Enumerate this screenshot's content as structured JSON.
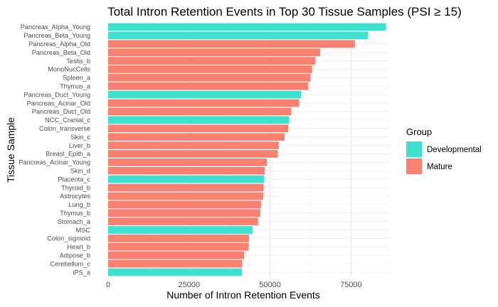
{
  "chart_data": {
    "type": "bar",
    "orientation": "horizontal",
    "title": "Total Intron Retention Events in Top 30 Tissue Samples (PSI ≥ 15)",
    "xlabel": "Number of Intron Retention Events",
    "ylabel": "Tissue Sample",
    "xlim": [
      0,
      87000
    ],
    "xticks": [
      0,
      25000,
      50000,
      75000
    ],
    "xtick_labels": [
      "0",
      "25000",
      "50000",
      "75000"
    ],
    "grid": true,
    "legend": {
      "title": "Group",
      "position": "right",
      "entries": [
        {
          "label": "Developmental",
          "color": "#40E0D0"
        },
        {
          "label": "Mature",
          "color": "#FA8072"
        }
      ]
    },
    "bars": [
      {
        "label": "Pancreas_Alpha_Young",
        "value": 85800,
        "group": "Developmental"
      },
      {
        "label": "Pancreas_Beta_Young",
        "value": 80300,
        "group": "Developmental"
      },
      {
        "label": "Pancreas_Alpha_Old",
        "value": 76200,
        "group": "Mature"
      },
      {
        "label": "Pancreas_Beta_Old",
        "value": 65500,
        "group": "Mature"
      },
      {
        "label": "Testis_b",
        "value": 64000,
        "group": "Mature"
      },
      {
        "label": "MonoNucCells",
        "value": 63000,
        "group": "Mature"
      },
      {
        "label": "Spleen_a",
        "value": 62500,
        "group": "Mature"
      },
      {
        "label": "Thymus_a",
        "value": 61800,
        "group": "Mature"
      },
      {
        "label": "Pancreas_Duct_Young",
        "value": 59600,
        "group": "Developmental"
      },
      {
        "label": "Pancreas_Acinar_Old",
        "value": 59000,
        "group": "Mature"
      },
      {
        "label": "Pancreas_Duct_Old",
        "value": 56500,
        "group": "Mature"
      },
      {
        "label": "NCC_Cranial_c",
        "value": 55900,
        "group": "Developmental"
      },
      {
        "label": "Colon_transverse",
        "value": 55600,
        "group": "Mature"
      },
      {
        "label": "Skin_c",
        "value": 54500,
        "group": "Mature"
      },
      {
        "label": "Liver_b",
        "value": 52700,
        "group": "Mature"
      },
      {
        "label": "Breast_Epith_a",
        "value": 52400,
        "group": "Mature"
      },
      {
        "label": "Pancreas_Acinar_Young",
        "value": 49000,
        "group": "Mature"
      },
      {
        "label": "Skin_d",
        "value": 48400,
        "group": "Mature"
      },
      {
        "label": "Placenta_c",
        "value": 48200,
        "group": "Developmental"
      },
      {
        "label": "Thyroid_b",
        "value": 48000,
        "group": "Mature"
      },
      {
        "label": "Astrocytes",
        "value": 47900,
        "group": "Mature"
      },
      {
        "label": "Lung_b",
        "value": 47200,
        "group": "Mature"
      },
      {
        "label": "Thymus_b",
        "value": 47000,
        "group": "Mature"
      },
      {
        "label": "Stomach_a",
        "value": 46300,
        "group": "Mature"
      },
      {
        "label": "MSC",
        "value": 44600,
        "group": "Developmental"
      },
      {
        "label": "Colon_sigmoid",
        "value": 43500,
        "group": "Mature"
      },
      {
        "label": "Heart_b",
        "value": 43400,
        "group": "Mature"
      },
      {
        "label": "Adipose_b",
        "value": 42000,
        "group": "Mature"
      },
      {
        "label": "Cerebellum_c",
        "value": 41400,
        "group": "Mature"
      },
      {
        "label": "iPS_a",
        "value": 41300,
        "group": "Developmental"
      }
    ]
  }
}
